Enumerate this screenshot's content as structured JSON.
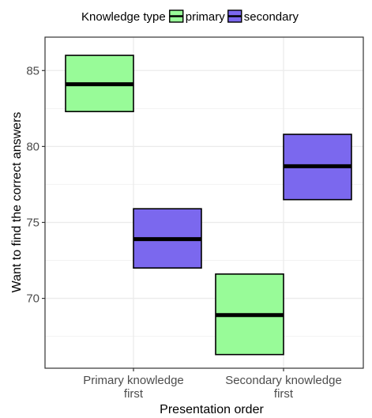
{
  "chart_data": {
    "type": "crossbar",
    "title": "",
    "xlabel": "Presentation order",
    "ylabel": "Want to find the correct answers",
    "ylim": [
      65.4,
      87.2
    ],
    "yticks": [
      70,
      75,
      80,
      85
    ],
    "grid": true,
    "legend": {
      "title": "Knowledge type",
      "position": "top"
    },
    "categories": [
      {
        "id": "pkf",
        "lines": [
          "Primary knowledge",
          "first"
        ]
      },
      {
        "id": "skf",
        "lines": [
          "Secondary knowledge",
          "first"
        ]
      }
    ],
    "series": [
      {
        "name": "primary",
        "color": "#98fb98",
        "values": [
          {
            "category": 0,
            "lower": 82.3,
            "middle": 84.1,
            "upper": 86.0
          },
          {
            "category": 1,
            "lower": 66.3,
            "middle": 68.9,
            "upper": 71.6
          }
        ]
      },
      {
        "name": "secondary",
        "color": "#7b68ee",
        "values": [
          {
            "category": 0,
            "lower": 72.0,
            "middle": 73.9,
            "upper": 75.9
          },
          {
            "category": 1,
            "lower": 76.5,
            "middle": 78.7,
            "upper": 80.8
          }
        ]
      }
    ]
  }
}
